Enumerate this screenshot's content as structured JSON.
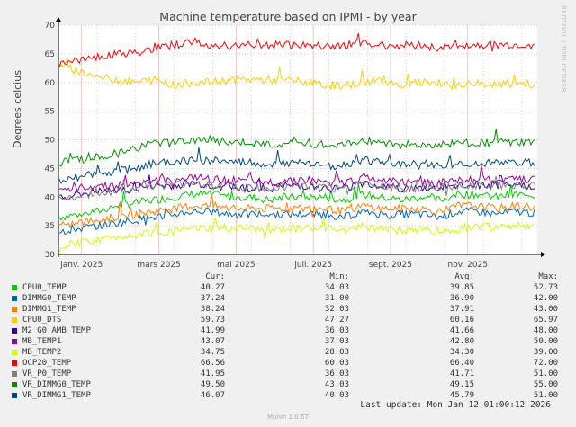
{
  "chart_data": {
    "type": "line",
    "title": "Machine temperature based on IPMI - by year",
    "ylabel": "Degrees celcius",
    "ylim": [
      30,
      70
    ],
    "yticks": [
      30,
      35,
      40,
      45,
      50,
      55,
      60,
      65,
      70
    ],
    "xtick_labels": [
      "janv. 2025",
      "mars 2025",
      "mai 2025",
      "juil. 2025",
      "sept. 2025",
      "nov. 2025"
    ],
    "series": [
      {
        "name": "CPU0_TEMP",
        "color": "#00cc00",
        "cur": "40.27",
        "min": "34.03",
        "avg": "39.85",
        "max": "52.73",
        "values": [
          36.5,
          37,
          37.5,
          38.5,
          39,
          39.5,
          40,
          40.5,
          40.5,
          40,
          40,
          39.5,
          40,
          40,
          40,
          39.5,
          40.5,
          40,
          39.5,
          40,
          39.5,
          40.5,
          40.5,
          40,
          40.5,
          40.3
        ]
      },
      {
        "name": "DIMMG0_TEMP",
        "color": "#0066b3",
        "cur": "37.24",
        "min": "31.00",
        "avg": "36.90",
        "max": "42.00",
        "values": [
          34,
          34.5,
          35,
          35.5,
          36,
          36.5,
          37,
          37.5,
          37.5,
          37,
          37,
          37,
          37,
          37,
          37,
          36.5,
          37.5,
          37,
          37,
          37,
          36.5,
          37.5,
          37.5,
          37,
          37.5,
          37.2
        ]
      },
      {
        "name": "DIMMG1_TEMP",
        "color": "#ff8000",
        "cur": "38.24",
        "min": "32.03",
        "avg": "37.91",
        "max": "43.00",
        "values": [
          35,
          35.5,
          36,
          36.5,
          37,
          37.5,
          38,
          38.5,
          38.5,
          38,
          38,
          38,
          38,
          38,
          38,
          37.5,
          38.5,
          38,
          38,
          38,
          37.5,
          38.5,
          38.5,
          38,
          38.5,
          38.2
        ]
      },
      {
        "name": "CPU0_DTS",
        "color": "#ffcc00",
        "cur": "59.73",
        "min": "47.27",
        "avg": "60.16",
        "max": "65.97",
        "values": [
          63,
          62,
          61,
          60.5,
          60,
          60.5,
          59.5,
          60,
          60,
          60.5,
          60.5,
          60.5,
          60.5,
          60,
          59.5,
          59.5,
          60,
          60.5,
          59.5,
          60,
          59.5,
          59.5,
          60,
          59.5,
          60,
          59.7
        ]
      },
      {
        "name": "M2_G0_AMB_TEMP",
        "color": "#330099",
        "cur": "41.99",
        "min": "36.03",
        "avg": "41.66",
        "max": "48.00",
        "values": [
          40,
          40.5,
          41,
          41,
          41.5,
          42,
          42,
          42.5,
          42,
          42,
          41.5,
          41.5,
          42,
          42,
          41.5,
          41.5,
          42.5,
          42,
          41.5,
          41.5,
          41.5,
          42,
          42,
          42,
          42,
          42
        ]
      },
      {
        "name": "MB_TEMP1",
        "color": "#990099",
        "cur": "43.07",
        "min": "37.03",
        "avg": "42.80",
        "max": "50.00",
        "values": [
          41,
          41.5,
          42,
          42,
          42.5,
          43,
          43,
          43.5,
          43,
          43,
          42.5,
          42.5,
          43,
          43,
          42.5,
          42.5,
          43.5,
          43,
          42.5,
          42.5,
          42.5,
          43,
          43,
          43,
          43,
          43.1
        ]
      },
      {
        "name": "MB_TEMP2",
        "color": "#ccff00",
        "cur": "34.75",
        "min": "28.03",
        "avg": "34.30",
        "max": "39.00",
        "values": [
          31,
          32,
          32.5,
          33,
          33.5,
          34,
          34,
          34.5,
          34.5,
          34.5,
          34.5,
          34,
          34.5,
          34.5,
          34.5,
          34,
          35,
          34.5,
          34,
          34.5,
          34,
          34.5,
          35,
          34.5,
          35,
          34.8
        ]
      },
      {
        "name": "OCP20_TEMP",
        "color": "#ff0000",
        "cur": "66.56",
        "min": "60.03",
        "avg": "66.40",
        "max": "72.00",
        "values": [
          63,
          64,
          64.5,
          65,
          65,
          66,
          66.5,
          67,
          66.5,
          66.5,
          66.5,
          66.5,
          66.5,
          66.5,
          66.5,
          66.5,
          67,
          66.5,
          66.5,
          66.5,
          66,
          66.5,
          66.5,
          66.5,
          66.5,
          66.6
        ]
      },
      {
        "name": "VR_P0_TEMP",
        "color": "#808080",
        "cur": "41.95",
        "min": "36.03",
        "avg": "41.71",
        "max": "51.00",
        "values": [
          39.5,
          40,
          40.5,
          41,
          41.5,
          42,
          42,
          42.5,
          42,
          42,
          41.5,
          41.5,
          42,
          42,
          41.5,
          41.5,
          42.5,
          42,
          41.5,
          41.5,
          41.5,
          42,
          42,
          42,
          42,
          42
        ]
      },
      {
        "name": "VR_DIMMG0_TEMP",
        "color": "#008f00",
        "cur": "49.50",
        "min": "43.03",
        "avg": "49.15",
        "max": "55.00",
        "values": [
          46,
          46.5,
          47,
          47.5,
          48.5,
          49.5,
          49.5,
          50,
          50,
          49.5,
          49.5,
          49,
          49.5,
          49.5,
          49,
          49,
          50,
          49.5,
          49,
          49,
          49,
          49.5,
          49.5,
          49.5,
          49.5,
          49.5
        ]
      },
      {
        "name": "VR_DIMMG1_TEMP",
        "color": "#00487d",
        "cur": "46.07",
        "min": "40.03",
        "avg": "45.79",
        "max": "51.00",
        "values": [
          43,
          43.5,
          44,
          44.5,
          45,
          46,
          46,
          46.5,
          46.5,
          46,
          46,
          45.5,
          46,
          46,
          45.5,
          45.5,
          46.5,
          46,
          45.5,
          45.5,
          45.5,
          46,
          46,
          46,
          46,
          46.1
        ]
      }
    ]
  },
  "legend_headers": {
    "cur": "Cur:",
    "min": "Min:",
    "avg": "Avg:",
    "max": "Max:"
  },
  "last_update": "Last update: Mon Jan 12 01:00:12 2026",
  "footer": "Munin 2.0.57",
  "watermark": "RRDTOOL / TOBI OETIKER"
}
